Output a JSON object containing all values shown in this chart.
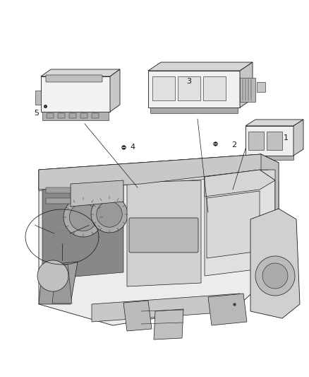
{
  "background_color": "#ffffff",
  "fig_width": 4.38,
  "fig_height": 5.33,
  "dpi": 100,
  "image_data": ""
}
